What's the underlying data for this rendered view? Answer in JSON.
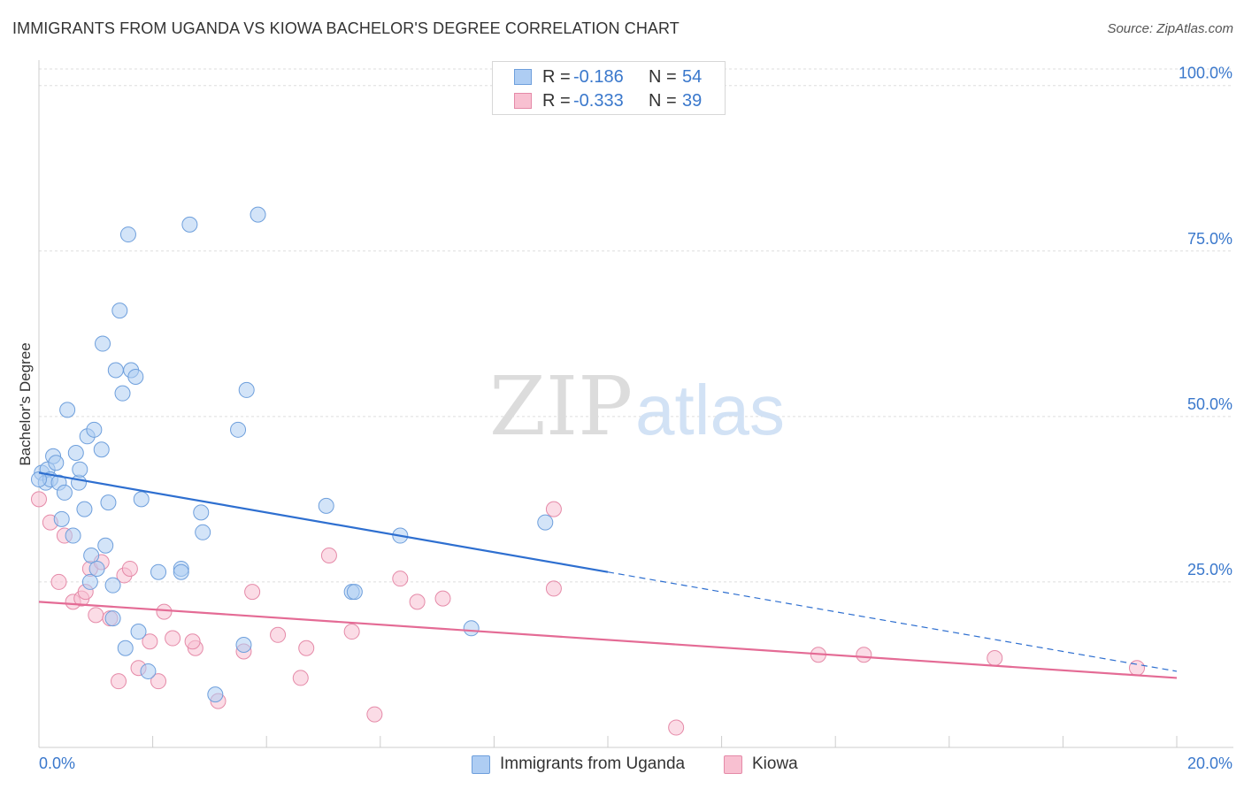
{
  "title": "IMMIGRANTS FROM UGANDA VS KIOWA BACHELOR'S DEGREE CORRELATION CHART",
  "source": "Source: ZipAtlas.com",
  "watermark": {
    "zip": "ZIP",
    "atlas": "atlas"
  },
  "legend": {
    "rows": [
      {
        "r_label": "R =",
        "r_value": "-0.186",
        "n_label": "N =",
        "n_value": "54"
      },
      {
        "r_label": "R =",
        "r_value": "-0.333",
        "n_label": "N =",
        "n_value": "39"
      }
    ]
  },
  "bottom_legend": [
    "Immigrants from Uganda",
    "Kiowa"
  ],
  "colors": {
    "uganda_fill": "#aecdf3",
    "uganda_stroke": "#6e9fdc",
    "uganda_line": "#2e6fd0",
    "kiowa_fill": "#f8c0d1",
    "kiowa_stroke": "#e58aa8",
    "kiowa_line": "#e46b95",
    "tick_label": "#3a78cc"
  },
  "chart_data": {
    "type": "scatter",
    "title": "IMMIGRANTS FROM UGANDA VS KIOWA BACHELOR'S DEGREE CORRELATION CHART",
    "xlabel": "",
    "ylabel": "Bachelor's Degree",
    "xlim": [
      0,
      20
    ],
    "ylim": [
      0,
      102.5
    ],
    "x_tick_labels": [
      "0.0%",
      "20.0%"
    ],
    "y_ticks": [
      25,
      50,
      75,
      100
    ],
    "y_tick_labels": [
      "25.0%",
      "50.0%",
      "75.0%",
      "100.0%"
    ],
    "grid": true,
    "legend_position": "top-center",
    "series": [
      {
        "name": "Immigrants from Uganda",
        "r": -0.186,
        "n": 54,
        "points": [
          [
            0.05,
            41.5
          ],
          [
            0.12,
            40.0
          ],
          [
            0.15,
            42.0
          ],
          [
            0.2,
            40.5
          ],
          [
            0.25,
            44.0
          ],
          [
            0.3,
            43.0
          ],
          [
            0.35,
            40.0
          ],
          [
            0.4,
            34.5
          ],
          [
            0.45,
            38.5
          ],
          [
            0.5,
            51.0
          ],
          [
            0.6,
            32.0
          ],
          [
            0.65,
            44.5
          ],
          [
            0.7,
            40.0
          ],
          [
            0.72,
            42.0
          ],
          [
            0.8,
            36.0
          ],
          [
            0.85,
            47.0
          ],
          [
            0.9,
            25.0
          ],
          [
            0.92,
            29.0
          ],
          [
            0.97,
            48.0
          ],
          [
            1.02,
            27.0
          ],
          [
            1.1,
            45.0
          ],
          [
            1.12,
            61.0
          ],
          [
            1.17,
            30.5
          ],
          [
            1.22,
            37.0
          ],
          [
            1.3,
            24.5
          ],
          [
            1.3,
            19.5
          ],
          [
            1.35,
            57.0
          ],
          [
            1.42,
            66.0
          ],
          [
            1.47,
            53.5
          ],
          [
            1.52,
            15.0
          ],
          [
            1.57,
            77.5
          ],
          [
            1.62,
            57.0
          ],
          [
            1.7,
            56.0
          ],
          [
            1.75,
            17.5
          ],
          [
            1.8,
            37.5
          ],
          [
            1.92,
            11.5
          ],
          [
            2.1,
            26.5
          ],
          [
            2.5,
            27.0
          ],
          [
            2.5,
            26.5
          ],
          [
            2.65,
            79.0
          ],
          [
            2.85,
            35.5
          ],
          [
            2.88,
            32.5
          ],
          [
            3.1,
            8.0
          ],
          [
            3.5,
            48.0
          ],
          [
            3.6,
            15.5
          ],
          [
            3.65,
            54.0
          ],
          [
            3.85,
            80.5
          ],
          [
            5.05,
            36.5
          ],
          [
            5.5,
            23.5
          ],
          [
            5.55,
            23.5
          ],
          [
            6.35,
            32.0
          ],
          [
            7.6,
            18.0
          ],
          [
            8.9,
            34.0
          ],
          [
            0.0,
            40.5
          ]
        ],
        "trend": {
          "x0": 0.0,
          "y0": 41.5,
          "x1": 10.0,
          "y1": 26.5,
          "dash_x1": 20.0,
          "dash_y1": 11.5
        }
      },
      {
        "name": "Kiowa",
        "r": -0.333,
        "n": 39,
        "points": [
          [
            0.0,
            37.5
          ],
          [
            0.2,
            34.0
          ],
          [
            0.35,
            25.0
          ],
          [
            0.45,
            32.0
          ],
          [
            0.6,
            22.0
          ],
          [
            0.75,
            22.5
          ],
          [
            0.82,
            23.5
          ],
          [
            0.9,
            27.0
          ],
          [
            1.0,
            20.0
          ],
          [
            1.1,
            28.0
          ],
          [
            1.25,
            19.5
          ],
          [
            1.4,
            10.0
          ],
          [
            1.5,
            26.0
          ],
          [
            1.6,
            27.0
          ],
          [
            1.75,
            12.0
          ],
          [
            1.95,
            16.0
          ],
          [
            2.1,
            10.0
          ],
          [
            2.2,
            20.5
          ],
          [
            2.35,
            16.5
          ],
          [
            2.75,
            15.0
          ],
          [
            2.7,
            16.0
          ],
          [
            3.15,
            7.0
          ],
          [
            3.6,
            14.5
          ],
          [
            3.75,
            23.5
          ],
          [
            4.2,
            17.0
          ],
          [
            4.6,
            10.5
          ],
          [
            4.7,
            15.0
          ],
          [
            5.1,
            29.0
          ],
          [
            5.5,
            17.5
          ],
          [
            5.9,
            5.0
          ],
          [
            6.35,
            25.5
          ],
          [
            6.65,
            22.0
          ],
          [
            7.1,
            22.5
          ],
          [
            9.05,
            36.0
          ],
          [
            9.05,
            24.0
          ],
          [
            11.2,
            3.0
          ],
          [
            13.7,
            14.0
          ],
          [
            14.5,
            14.0
          ],
          [
            16.8,
            13.5
          ],
          [
            19.3,
            12.0
          ]
        ],
        "trend": {
          "x0": 0.0,
          "y0": 22.0,
          "x1": 20.0,
          "y1": 10.5
        }
      }
    ]
  }
}
